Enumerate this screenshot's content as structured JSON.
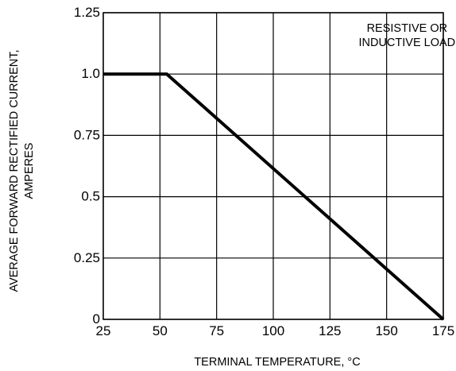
{
  "chart_data": {
    "type": "line",
    "title": "",
    "xlabel": "TERMINAL TEMPERATURE, °C",
    "ylabel_lines": [
      "AVERAGE FORWARD RECTIFIED CURRENT,",
      "AMPERES"
    ],
    "xlim": [
      25,
      175
    ],
    "ylim": [
      0,
      1.25
    ],
    "x_ticks": [
      25,
      50,
      75,
      100,
      125,
      150,
      175
    ],
    "x_tick_labels": [
      "25",
      "50",
      "75",
      "100",
      "125",
      "150",
      "175"
    ],
    "y_ticks": [
      0,
      0.25,
      0.5,
      0.75,
      1.0,
      1.25
    ],
    "y_tick_labels": [
      "0",
      "0.25",
      "0.5",
      "0.75",
      "1.0",
      "1.25"
    ],
    "grid": true,
    "annotation_lines": [
      "RESISTIVE OR",
      "INDUCTIVE LOAD"
    ],
    "series": [
      {
        "x": [
          25,
          53,
          175
        ],
        "y": [
          1.0,
          1.0,
          0.0
        ]
      }
    ],
    "colors": {
      "line": "#000000",
      "grid": "#000000",
      "background": "#ffffff"
    }
  }
}
